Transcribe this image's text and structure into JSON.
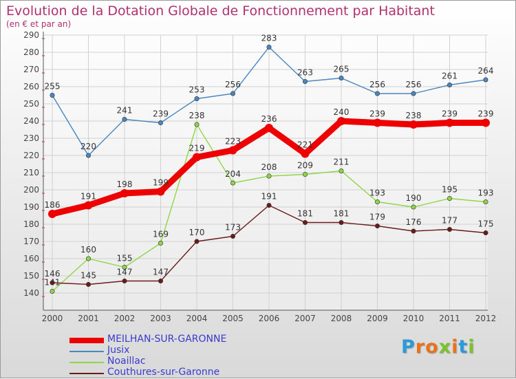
{
  "title": "Evolution de la Dotation Globale de Fonctionnement par Habitant",
  "subtitle": "(en € et par an)",
  "logo": {
    "letters": [
      "P",
      "r",
      "o",
      "x",
      "i",
      "t",
      "i"
    ],
    "colors": [
      "#2a9ad8",
      "#e8731a",
      "#e8731a",
      "#7cc22b",
      "#e8731a",
      "#2a9ad8",
      "#7cc22b"
    ]
  },
  "chart_data": {
    "type": "line",
    "categories": [
      "2000",
      "2001",
      "2002",
      "2003",
      "2004",
      "2005",
      "2006",
      "2007",
      "2008",
      "2009",
      "2010",
      "2011",
      "2012"
    ],
    "ylim": [
      130,
      290
    ],
    "yticks": [
      "140",
      "150",
      "160",
      "170",
      "180",
      "190",
      "200",
      "210",
      "220",
      "230",
      "240",
      "250",
      "260",
      "270",
      "280",
      "290"
    ],
    "grid": true,
    "legend_position": "bottom-left",
    "series": [
      {
        "name": "Jusix",
        "color": "#4a86c0",
        "values": [
          255,
          220,
          241,
          239,
          253,
          256,
          283,
          263,
          265,
          256,
          256,
          261,
          264
        ],
        "labels": [
          "255",
          "220",
          "241",
          "239",
          "253",
          "256",
          "283",
          "263",
          "265",
          "256",
          "256",
          "261",
          "264"
        ]
      },
      {
        "name": "Noaillac",
        "color": "#8fd646",
        "values": [
          141,
          160,
          155,
          169,
          238,
          204,
          208,
          209,
          211,
          193,
          190,
          195,
          193
        ],
        "labels": [
          "141",
          "160",
          "155",
          "169",
          "238",
          "204",
          "208",
          "209",
          "211",
          "193",
          "190",
          "195",
          "193"
        ]
      },
      {
        "name": "Couthures-sur-Garonne",
        "color": "#6b1a1a",
        "values": [
          146,
          145,
          147,
          147,
          170,
          173,
          191,
          181,
          181,
          179,
          176,
          177,
          175
        ],
        "labels": [
          "146",
          "145",
          "147",
          "147",
          "170",
          "173",
          "191",
          "181",
          "181",
          "179",
          "176",
          "177",
          "175"
        ]
      },
      {
        "name": "MEILHAN-SUR-GARONNE",
        "color": "#ee0000",
        "values": [
          186,
          191,
          198,
          199,
          219,
          223,
          236,
          221,
          240,
          239,
          238,
          239,
          239
        ],
        "labels": [
          "186",
          "191",
          "198",
          "199",
          "219",
          "223",
          "236",
          "221",
          "240",
          "239",
          "238",
          "239",
          "239"
        ]
      }
    ],
    "legend": [
      {
        "name": "MEILHAN-SUR-GARONNE",
        "color": "#ee0000",
        "thick": true
      },
      {
        "name": "Jusix",
        "color": "#4a86c0",
        "thick": false
      },
      {
        "name": "Noaillac",
        "color": "#8fd646",
        "thick": false
      },
      {
        "name": "Couthures-sur-Garonne",
        "color": "#6b1a1a",
        "thick": false
      }
    ]
  }
}
